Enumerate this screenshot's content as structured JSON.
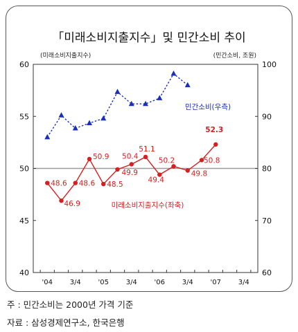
{
  "chart_data": {
    "type": "line",
    "title": "「미래소비지출지수」및 민간소비 추이",
    "ylabel_left": "(미래소비지출지수)",
    "ylabel_right": "(민간소비, 조원)",
    "ylim_left": [
      40,
      60
    ],
    "ylim_right": [
      60,
      100
    ],
    "yticks_left": [
      "40",
      "45",
      "50",
      "55",
      "60"
    ],
    "yticks_right": [
      "60",
      "70",
      "80",
      "90",
      "100"
    ],
    "xtick_labels": [
      {
        "label": "'04",
        "x": 0
      },
      {
        "label": "3/4",
        "x": 2
      },
      {
        "label": "'05",
        "x": 4
      },
      {
        "label": "3/4",
        "x": 6
      },
      {
        "label": "'06",
        "x": 8
      },
      {
        "label": "3/4",
        "x": 10
      },
      {
        "label": "'07",
        "x": 12
      },
      {
        "label": "3/4",
        "x": 14
      }
    ],
    "x_positions": [
      0,
      1,
      2,
      3,
      4,
      5,
      6,
      7,
      8,
      9,
      10,
      11,
      12
    ],
    "reference_line_left": 50,
    "series": [
      {
        "name": "미래소비지출지수(좌축)",
        "axis": "left",
        "color": "#d42020",
        "style": "solid",
        "marker": "circle",
        "values": [
          48.6,
          46.9,
          48.6,
          50.9,
          48.5,
          49.9,
          50.4,
          51.1,
          49.4,
          50.2,
          49.8,
          50.8,
          52.3
        ],
        "labels": [
          "48.6",
          "46.9",
          "48.6",
          "50.9",
          "48.5",
          "49.9",
          "50.4",
          "51.1",
          "49.4",
          "50.2",
          "49.8",
          "50.8",
          "52.3"
        ]
      },
      {
        "name": "민간소비(우측)",
        "axis": "right",
        "color": "#1a2fb8",
        "style": "dotted",
        "marker": "triangle",
        "values": [
          86.0,
          90.2,
          87.7,
          88.7,
          89.6,
          94.7,
          92.4,
          92.4,
          93.5,
          98.2,
          96.0
        ],
        "x_positions": [
          0,
          1,
          2,
          3,
          4,
          5,
          6,
          7,
          8,
          9,
          10
        ]
      }
    ],
    "grid": false,
    "legend": "inline labels"
  },
  "footnotes": [
    "주 : 민간소비는 2000년 가격 기준",
    "자료 : 삼성경제연구소, 한국은행"
  ]
}
